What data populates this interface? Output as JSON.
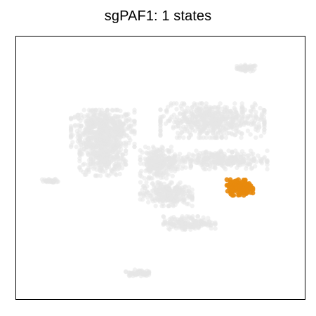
{
  "chart_data": {
    "type": "scatter",
    "title": "sgPAF1: 1 states",
    "xlabel": "",
    "ylabel": "",
    "grid": false,
    "axis_ticks": false,
    "legend": "none",
    "background_color": "#e5e5e5",
    "highlight_color": "#e8890c",
    "background_clusters": [
      {
        "name": "top-right blob",
        "cx": 0.8,
        "cy": 0.88,
        "rx": 0.035,
        "ry": 0.012,
        "n": 55
      },
      {
        "name": "left-main upper",
        "cx": 0.3,
        "cy": 0.65,
        "rx": 0.11,
        "ry": 0.07,
        "n": 520
      },
      {
        "name": "left-main lower",
        "cx": 0.3,
        "cy": 0.55,
        "rx": 0.08,
        "ry": 0.08,
        "n": 380
      },
      {
        "name": "right arc upper",
        "cx": 0.68,
        "cy": 0.68,
        "rx": 0.18,
        "ry": 0.065,
        "n": 560
      },
      {
        "name": "right arc lower",
        "cx": 0.7,
        "cy": 0.53,
        "rx": 0.17,
        "ry": 0.035,
        "n": 320
      },
      {
        "name": "center bridge",
        "cx": 0.49,
        "cy": 0.52,
        "rx": 0.06,
        "ry": 0.06,
        "n": 230
      },
      {
        "name": "lower stream",
        "cx": 0.52,
        "cy": 0.4,
        "rx": 0.09,
        "ry": 0.045,
        "n": 260
      },
      {
        "name": "lower tail",
        "cx": 0.6,
        "cy": 0.29,
        "rx": 0.09,
        "ry": 0.025,
        "n": 170
      },
      {
        "name": "left small",
        "cx": 0.12,
        "cy": 0.45,
        "rx": 0.03,
        "ry": 0.008,
        "n": 35
      },
      {
        "name": "bottom small",
        "cx": 0.42,
        "cy": 0.1,
        "rx": 0.04,
        "ry": 0.012,
        "n": 55
      }
    ],
    "highlight_clusters": [
      {
        "name": "sgPAF1 state 1",
        "cx": 0.775,
        "cy": 0.425,
        "rx": 0.045,
        "ry": 0.03,
        "n": 140
      }
    ]
  }
}
